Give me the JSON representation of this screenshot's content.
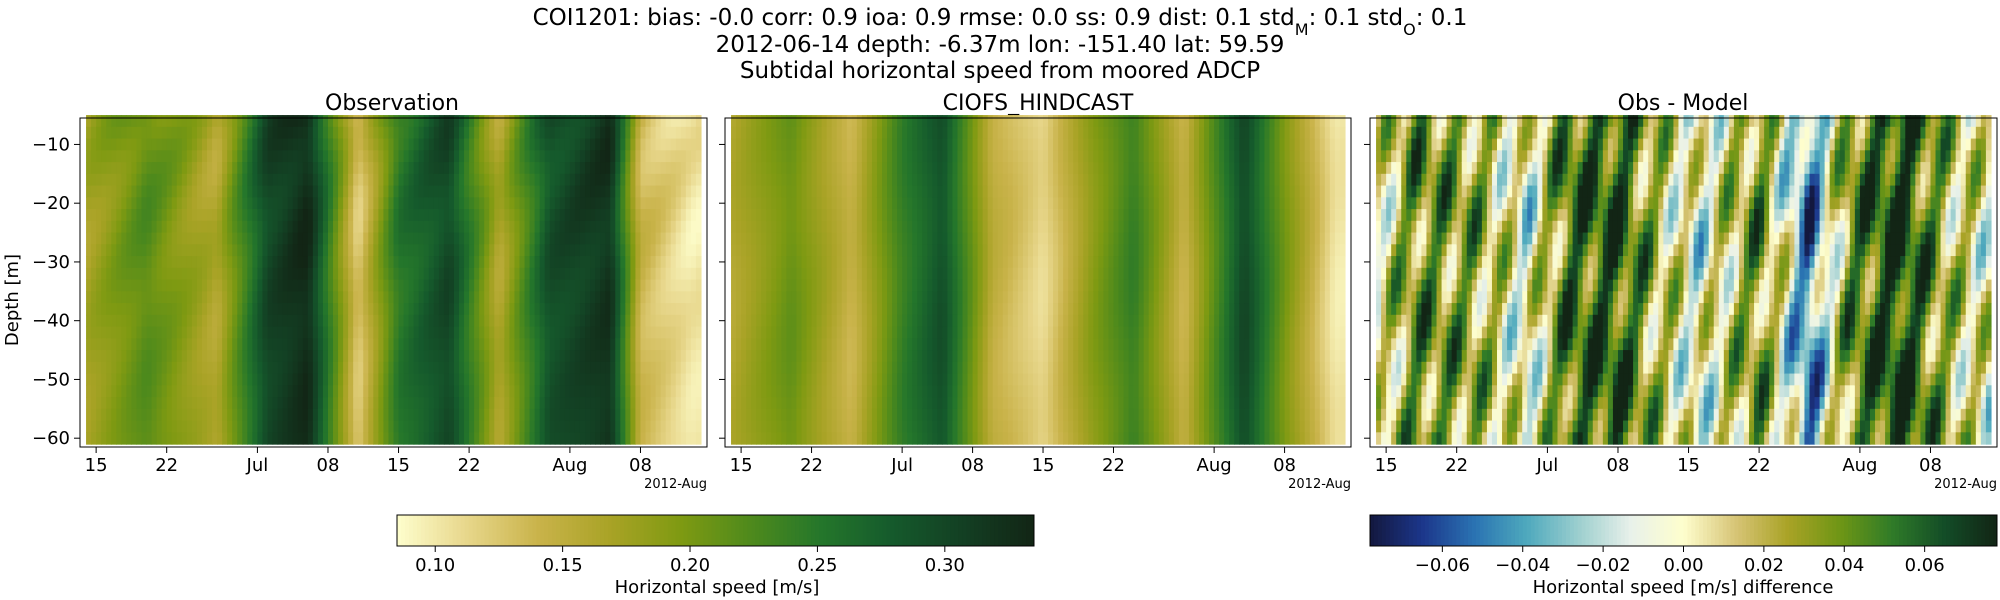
{
  "header": {
    "line1": "COI1201: bias: -0.0  corr: 0.9  ioa: 0.9  rmse: 0.0  ss: 0.9  dist: 0.1  std",
    "std_model_sub": "M",
    "line1_mid": ": 0.1  std",
    "std_obs_sub": "O",
    "line1_end": ": 0.1",
    "line2": "2012-06-14 depth: -6.37m lon: -151.40 lat: 59.59",
    "line3": "Subtidal horizontal speed from moored ADCP"
  },
  "chart_data": [
    {
      "type": "heatmap",
      "title": "Observation",
      "ylabel": "Depth [m]",
      "xlabel": "",
      "x_ticks": [
        "15",
        "22",
        "Jul",
        "08",
        "15",
        "22",
        "Aug",
        "08"
      ],
      "x_offset_label": "2012-Aug",
      "x_range": [
        "2012-06-14",
        "2012-08-14"
      ],
      "y_ticks": [
        -10,
        -20,
        -30,
        -40,
        -50,
        -60
      ],
      "ylim": [
        -61.5,
        -5.5
      ],
      "colorscale": "speed",
      "key_dates": [
        "2012-06-14",
        "2012-06-20",
        "2012-06-27",
        "2012-07-02",
        "2012-07-06",
        "2012-07-11",
        "2012-07-15",
        "2012-07-20",
        "2012-07-25",
        "2012-07-30",
        "2012-08-05",
        "2012-08-08",
        "2012-08-13"
      ],
      "key_values": [
        0.17,
        0.22,
        0.16,
        0.3,
        0.33,
        0.12,
        0.25,
        0.3,
        0.16,
        0.29,
        0.32,
        0.14,
        0.1
      ]
    },
    {
      "type": "heatmap",
      "title": "CIOFS_HINDCAST",
      "xlabel": "",
      "x_ticks": [
        "15",
        "22",
        "Jul",
        "08",
        "15",
        "22",
        "Aug",
        "08"
      ],
      "x_offset_label": "2012-Aug",
      "x_range": [
        "2012-06-14",
        "2012-08-14"
      ],
      "y_ticks": [
        -10,
        -20,
        -30,
        -40,
        -50,
        -60
      ],
      "ylim": [
        -61.5,
        -5.5
      ],
      "colorscale": "speed",
      "key_dates": [
        "2012-06-14",
        "2012-06-20",
        "2012-06-26",
        "2012-07-01",
        "2012-07-05",
        "2012-07-10",
        "2012-07-15",
        "2012-07-20",
        "2012-07-24",
        "2012-07-29",
        "2012-08-04",
        "2012-08-08",
        "2012-08-13"
      ],
      "key_values": [
        0.16,
        0.21,
        0.14,
        0.24,
        0.29,
        0.15,
        0.11,
        0.19,
        0.24,
        0.14,
        0.3,
        0.2,
        0.1
      ]
    },
    {
      "type": "heatmap",
      "title": "Obs - Model",
      "xlabel": "",
      "x_ticks": [
        "15",
        "22",
        "Jul",
        "08",
        "15",
        "22",
        "Aug",
        "08"
      ],
      "x_offset_label": "2012-Aug",
      "x_range": [
        "2012-06-14",
        "2012-08-14"
      ],
      "y_ticks": [
        -10,
        -20,
        -30,
        -40,
        -50,
        -60
      ],
      "ylim": [
        -61.5,
        -5.5
      ],
      "colorscale": "difference",
      "key_dates": [
        "2012-06-14",
        "2012-06-18",
        "2012-06-24",
        "2012-06-29",
        "2012-07-03",
        "2012-07-08",
        "2012-07-12",
        "2012-07-16",
        "2012-07-22",
        "2012-07-27",
        "2012-07-31",
        "2012-08-05",
        "2012-08-10",
        "2012-08-14"
      ],
      "key_values": [
        0.0,
        0.04,
        0.03,
        -0.01,
        0.05,
        0.06,
        0.02,
        -0.01,
        0.04,
        -0.05,
        0.04,
        0.07,
        0.02,
        0.0
      ]
    }
  ],
  "colorbars": [
    {
      "label": "Horizontal speed [m/s]",
      "range": [
        0.085,
        0.335
      ],
      "ticks": [
        0.1,
        0.15,
        0.2,
        0.25,
        0.3
      ],
      "tick_labels": [
        "0.10",
        "0.15",
        "0.20",
        "0.25",
        "0.30"
      ],
      "colors": [
        "#fefecd",
        "#e7d68a",
        "#c9b34a",
        "#a9a326",
        "#7f9a12",
        "#4e8a1c",
        "#24762b",
        "#155a2c",
        "#133f23",
        "#122515"
      ]
    },
    {
      "label": "Horizontal speed [m/s] difference",
      "range": [
        -0.078,
        0.078
      ],
      "ticks": [
        -0.06,
        -0.04,
        -0.02,
        0.0,
        0.02,
        0.04,
        0.06
      ],
      "tick_labels": [
        "−0.06",
        "−0.04",
        "−0.02",
        "0.00",
        "0.02",
        "0.04",
        "0.06"
      ],
      "colors": [
        "#13183e",
        "#1c368b",
        "#2a73b2",
        "#4ea9bd",
        "#9dcfcf",
        "#e9f1ea",
        "#fefecd",
        "#d7c476",
        "#a9a326",
        "#6e9615",
        "#2f7b28",
        "#134c27",
        "#122515"
      ]
    }
  ]
}
